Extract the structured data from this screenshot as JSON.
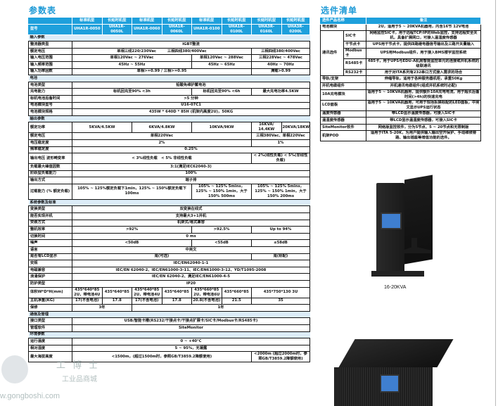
{
  "spec": {
    "title": "参数表",
    "header": {
      "row1_label": "",
      "row2_label": "型号",
      "types": [
        "标准机型",
        "长延时机型",
        "标准机型",
        "长延时机型",
        "标准机型",
        "长延时机型",
        "长延时机型",
        "长延时机型"
      ],
      "models": [
        "UHA1R-0050",
        "UHA1R-0050L",
        "UHA1R-0060",
        "UHA1R-0060L",
        "UHA1R-0100",
        "UHA1R-0100L",
        "UHA3R-0160L",
        "UHA3R-0200L"
      ]
    },
    "rows": [
      {
        "section": "输入参数"
      },
      {
        "label": "整流器类型",
        "cells": [
          {
            "text": "IGBT整流",
            "span": 8
          }
        ]
      },
      {
        "label": "额定电压",
        "cells": [
          {
            "text": "单相三线220/230Vac　　　三相四线380/400Vac",
            "span": 6
          },
          {
            "text": "三相四线380/400Vac",
            "span": 2
          }
        ]
      },
      {
        "label": "输入电压范围",
        "cells": [
          {
            "text": "单相120Vac ~ 276Vac",
            "span": 4
          },
          {
            "text": "单相120Vac ~ 288Vac",
            "span": 2
          },
          {
            "text": "三相228Vac ~ 478Vac",
            "span": 2
          }
        ]
      },
      {
        "label": "输入频率范围",
        "cells": [
          {
            "text": "45Hz ~ 55Hz",
            "span": 4
          },
          {
            "text": "45Hz ~ 65Hz",
            "span": 2
          },
          {
            "text": "40Hz ~ 70Hz",
            "span": 2
          }
        ]
      },
      {
        "label": "输入功率因数",
        "cells": [
          {
            "text": "单相>=0.99 / 三相>=0.95",
            "span": 6
          },
          {
            "text": "满载>0.99",
            "span": 2
          }
        ]
      },
      {
        "section": "电池"
      },
      {
        "label": "电池类型",
        "cells": [
          {
            "text": "铅酸免维护蓄电池",
            "span": 8
          }
        ]
      },
      {
        "label": "充电能力",
        "cells": [
          {
            "text": "标机回充至90% <3h",
            "span": 4
          },
          {
            "text": "标机回充至90% <6h",
            "span": 2
          },
          {
            "text": "最大充电功率4.5KW",
            "span": 2
          }
        ]
      },
      {
        "label": "标机电池后备时间",
        "cells": [
          {
            "text": ">5 分钟",
            "span": 8
          }
        ]
      },
      {
        "label": "电池模块型号",
        "cells": [
          {
            "text": "U16-07C1",
            "span": 8
          }
        ]
      },
      {
        "label": "电池模块规格",
        "cells": [
          {
            "text": "435W * 640D * 85H (机架内高度2U)，50KG",
            "span": 8
          }
        ]
      },
      {
        "section": "输出参数"
      },
      {
        "label": "额定功率",
        "tall": true,
        "cells": [
          {
            "text": "5KVA/4.5KW",
            "span": 2
          },
          {
            "text": "6KVA/4.8KW",
            "span": 2
          },
          {
            "text": "10KVA/9KW",
            "span": 2
          },
          {
            "text": "16KVA/ 14.4KW",
            "span": 1
          },
          {
            "text": "20KVA/18KW",
            "span": 1
          }
        ]
      },
      {
        "label": "额定电压",
        "cells": [
          {
            "text": "单相220Vac",
            "span": 6
          },
          {
            "text": "三相380Vac、单相220Vac",
            "span": 2
          }
        ]
      },
      {
        "label": "电压稳定度",
        "cells": [
          {
            "text": "2%",
            "span": 6
          },
          {
            "text": "1%",
            "span": 2
          }
        ]
      },
      {
        "label": "频率稳定度",
        "cells": [
          {
            "text": "0.25%",
            "span": 8
          }
        ]
      },
      {
        "label": "输出电压 波形畸变率",
        "tall": true,
        "cells": [
          {
            "text": "< 3%线性负载　< 5% 非线性负载",
            "span": 6
          },
          {
            "text": "< 2%(线性负载) < 5%(非线性负载)",
            "span": 2
          }
        ]
      },
      {
        "label": "负载最大峰值因数",
        "cells": [
          {
            "text": "3:1(满足IEC62040-3)",
            "span": 8
          }
        ]
      },
      {
        "label": "阶跃型负载能力",
        "cells": [
          {
            "text": "100%",
            "span": 8
          }
        ]
      },
      {
        "label": "输出方式",
        "cells": [
          {
            "text": "端子排",
            "span": 8
          }
        ]
      },
      {
        "label": "过载能力 (% 额定负载)",
        "tall": true,
        "cells": [
          {
            "text": "105% ~ 125%额定负载下1min，125% ~ 150%额定负载下100ms",
            "span": 4
          },
          {
            "text": "105% ~ 125% 5mins，125% ~ 150% 1min，大于150% 500ms",
            "span": 2
          },
          {
            "text": "105% ~ 125% 5mins，125% ~ 150% 1min，大于150% 200ms",
            "span": 2
          }
        ]
      },
      {
        "section": "系统参数及标准"
      },
      {
        "label": "变换类型",
        "cells": [
          {
            "text": "双变换在线式",
            "span": 8
          }
        ]
      },
      {
        "label": "能否实现并机",
        "cells": [
          {
            "text": "支持最大3+1并机",
            "span": 8
          }
        ]
      },
      {
        "label": "安装方式",
        "cells": [
          {
            "text": "机架式/塔式兼容",
            "span": 8
          }
        ]
      },
      {
        "label": "整机效率",
        "cells": [
          {
            "text": ">92%",
            "span": 4
          },
          {
            "text": ">92.5%",
            "span": 2
          },
          {
            "text": "Up to 94%",
            "span": 2
          }
        ]
      },
      {
        "label": "切换时间",
        "cells": [
          {
            "text": "0 ms",
            "span": 8
          }
        ]
      },
      {
        "label": "噪声",
        "cells": [
          {
            "text": "<50dB",
            "span": 4
          },
          {
            "text": "<55dB",
            "span": 2
          },
          {
            "text": "≤58dB",
            "span": 2
          }
        ]
      },
      {
        "label": "语言",
        "cells": [
          {
            "text": "中英文",
            "span": 8
          }
        ]
      },
      {
        "label": "是否有LCD显示",
        "cells": [
          {
            "text": "是(可选)",
            "span": 6
          },
          {
            "text": "是(标配)",
            "span": 2
          }
        ]
      },
      {
        "label": "安规",
        "cells": [
          {
            "text": "IEC/EN62040-1-1",
            "span": 8
          }
        ]
      },
      {
        "label": "电磁兼容",
        "cells": [
          {
            "text": "IEC/EN 62040-2、IEC/EN61000-3-11、IEC/EN61000-3-12、YD/T1095-2008",
            "span": 8
          }
        ]
      },
      {
        "label": "浪涌保护",
        "cells": [
          {
            "text": "IEC/EN 62040-2、满足IEC/EN61000-4-5",
            "span": 8
          }
        ]
      },
      {
        "label": "防护类型",
        "cells": [
          {
            "text": "IP20",
            "span": 8
          }
        ]
      },
      {
        "label": "体积W*D*H(mm)",
        "tall": true,
        "cells": [
          {
            "text": "435*640*85 2U，带电池4U",
            "span": 1
          },
          {
            "text": "435*640*85",
            "span": 1
          },
          {
            "text": "435*640*85 2U，带电池4U",
            "span": 1
          },
          {
            "text": "435*640*85",
            "span": 1
          },
          {
            "text": "435*660*85 2U，带电池6U",
            "span": 1
          },
          {
            "text": "435*660*85",
            "span": 1
          },
          {
            "text": "435*750*130 3U",
            "span": 2
          }
        ]
      },
      {
        "label": "主机净重(KG)",
        "cells": [
          {
            "text": "17(不含电池)",
            "span": 1
          },
          {
            "text": "17.8",
            "span": 1
          },
          {
            "text": "17(不含电池)",
            "span": 1
          },
          {
            "text": "17.8",
            "span": 1
          },
          {
            "text": "20.8(不含电池)",
            "span": 1
          },
          {
            "text": "21.5",
            "span": 1
          },
          {
            "text": "35",
            "span": 2
          }
        ]
      },
      {
        "label": "保修",
        "cells": [
          {
            "text": "3年",
            "span": 2
          },
          {
            "text": "1年",
            "span": 6
          }
        ]
      },
      {
        "section": "通信及管理"
      },
      {
        "label": "接口类型",
        "cells": [
          {
            "text": "USB/智能卡槽(RS232/干接点卡/干接点扩展卡/SIC卡/Modbus卡/RS485卡)",
            "span": 8
          }
        ]
      },
      {
        "label": "管理软件",
        "cells": [
          {
            "text": "SiteMonitor",
            "span": 8
          }
        ]
      },
      {
        "section": "环境参数"
      },
      {
        "label": "运行温度",
        "cells": [
          {
            "text": "0 ~ +40℃",
            "span": 8
          }
        ]
      },
      {
        "label": "相对湿度",
        "cells": [
          {
            "text": "5 ~ 95%，无凝露",
            "span": 8
          }
        ]
      },
      {
        "label": "最大海拔高度",
        "tall": true,
        "cells": [
          {
            "text": "<1500m，(超过1500m时，参照GB/T3859.2降额使用)",
            "span": 6
          },
          {
            "text": "<2000m (超过2000m时，参照GB/T3859.2降额使用)",
            "span": 2
          }
        ]
      }
    ]
  },
  "options": {
    "title": "选件清单",
    "header": {
      "name": "选件产品名称",
      "note": "备注"
    },
    "rows": [
      {
        "name": "电池模块",
        "note": "2U，适用于5 ~ 20KVA机器用，内含16节 12V电池"
      },
      {
        "group": "通讯选件",
        "sub": [
          {
            "name": "SIC卡",
            "note": "网络监控SIC卡，用于远程TCP/IP的Web监控，支持远程安全关机，具备扩展网口，可接入温湿度传感器"
          },
          {
            "name": "干节点卡",
            "note": "UPS用干节点卡，提供四路继电器信号输出及三路开关量输入"
          },
          {
            "name": "Modbus卡",
            "note": "UPS用Modbus组件，用于接入BMS楼宇监控系统"
          },
          {
            "name": "RS485卡",
            "note": "485卡，用于UPS与EDU-A机房智能监控单元的连接或并机系统的级联通讯"
          },
          {
            "name": "RS232卡",
            "note": "用于对ITA系列有232串口方式接入需求的场合"
          }
        ]
      },
      {
        "name": "导轨/支架",
        "note": "伸缩导轨，适用于各种服务器机柜，承重50Kg"
      },
      {
        "name": "并机电缆组件",
        "note": "并机通讯电缆组件(组成并机系统时必配)"
      },
      {
        "name": "10A充电模块",
        "note": "适用于5 ~ 10KVA机器用，提供额外10A充电电流，用于超长后备时间(>4h)的快速充电"
      },
      {
        "name": "LCD面板",
        "note": "适用于5 ~ 10KVA机器用，可用于现场拆换标配的LED面板，中英文显示UPS运行状态"
      },
      {
        "name": "温度传感器",
        "note": "带LCD显示温度传感器，可接入SIC卡"
      },
      {
        "name": "温湿度传感器",
        "note": "带LCD显示温湿度传感器，可接入SIC卡"
      },
      {
        "name": "SiteMonitor软件",
        "note": "网络版监控软件，分为5节点、5 ~ 20节点和无限制版"
      },
      {
        "name": "机架POD",
        "note": "适用于ITA 5-20K，为用户提供输入输出空开保护、手动维修旁路、输出插座等增值功能的选件。"
      }
    ]
  },
  "products": {
    "tower_caption": "16-20KVA"
  },
  "watermark": {
    "brand": "工博士",
    "tagline": "工业品商城",
    "url": "w.gongboshi.com"
  },
  "colors": {
    "header_blue": "#1ea0dc",
    "section_bg": "#dcecf8",
    "title": "#1e9ad6"
  }
}
